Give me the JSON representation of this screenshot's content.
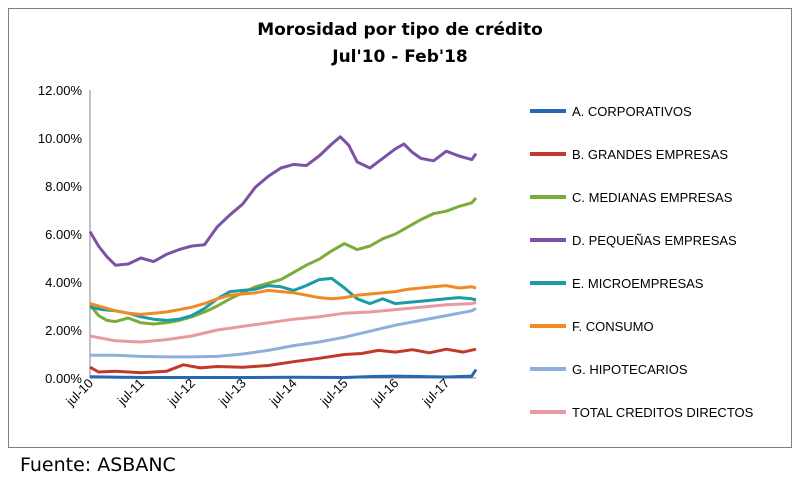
{
  "chart_data": {
    "type": "line",
    "title": "Morosidad por tipo de crédito",
    "subtitle": "Jul'10 - Feb'18",
    "xlabel": "",
    "ylabel": "",
    "ylim": [
      0,
      12
    ],
    "y_ticks": [
      "0.00%",
      "2.00%",
      "4.00%",
      "6.00%",
      "8.00%",
      "10.00%",
      "12.00%"
    ],
    "x_tick_labels": [
      "jul-10",
      "jul-11",
      "jul-12",
      "jul-13",
      "jul-14",
      "jul-15",
      "jul-16",
      "jul-17"
    ],
    "x_range": [
      "2010-07",
      "2018-02"
    ],
    "grid": "none",
    "legend_position": "right",
    "series": [
      {
        "name": "A. CORPORATIVOS",
        "color": "#2469b1",
        "points": [
          [
            "2010-07",
            0.05
          ],
          [
            "2011-07",
            0.02
          ],
          [
            "2012-07",
            0.02
          ],
          [
            "2013-07",
            0.02
          ],
          [
            "2014-07",
            0.03
          ],
          [
            "2015-07",
            0.02
          ],
          [
            "2016-01",
            0.06
          ],
          [
            "2016-07",
            0.08
          ],
          [
            "2017-07",
            0.04
          ],
          [
            "2018-01",
            0.08
          ],
          [
            "2018-02",
            0.35
          ]
        ]
      },
      {
        "name": "B. GRANDES EMPRESAS",
        "color": "#c0392b",
        "points": [
          [
            "2010-07",
            0.45
          ],
          [
            "2010-09",
            0.25
          ],
          [
            "2011-01",
            0.28
          ],
          [
            "2011-07",
            0.22
          ],
          [
            "2012-01",
            0.28
          ],
          [
            "2012-05",
            0.55
          ],
          [
            "2012-09",
            0.42
          ],
          [
            "2013-01",
            0.48
          ],
          [
            "2013-07",
            0.45
          ],
          [
            "2014-01",
            0.52
          ],
          [
            "2014-07",
            0.68
          ],
          [
            "2015-01",
            0.82
          ],
          [
            "2015-07",
            0.98
          ],
          [
            "2015-11",
            1.02
          ],
          [
            "2016-03",
            1.15
          ],
          [
            "2016-07",
            1.08
          ],
          [
            "2016-11",
            1.18
          ],
          [
            "2017-03",
            1.05
          ],
          [
            "2017-07",
            1.2
          ],
          [
            "2017-11",
            1.08
          ],
          [
            "2018-02",
            1.2
          ]
        ]
      },
      {
        "name": "C. MEDIANAS EMPRESAS",
        "color": "#7aac3a",
        "points": [
          [
            "2010-07",
            3.05
          ],
          [
            "2010-09",
            2.6
          ],
          [
            "2010-11",
            2.4
          ],
          [
            "2011-01",
            2.35
          ],
          [
            "2011-04",
            2.5
          ],
          [
            "2011-07",
            2.3
          ],
          [
            "2011-10",
            2.25
          ],
          [
            "2012-01",
            2.3
          ],
          [
            "2012-04",
            2.4
          ],
          [
            "2012-07",
            2.55
          ],
          [
            "2012-10",
            2.75
          ],
          [
            "2013-01",
            3.0
          ],
          [
            "2013-04",
            3.3
          ],
          [
            "2013-07",
            3.55
          ],
          [
            "2013-10",
            3.8
          ],
          [
            "2014-01",
            3.95
          ],
          [
            "2014-04",
            4.1
          ],
          [
            "2014-07",
            4.4
          ],
          [
            "2014-10",
            4.7
          ],
          [
            "2015-01",
            4.95
          ],
          [
            "2015-04",
            5.3
          ],
          [
            "2015-07",
            5.6
          ],
          [
            "2015-10",
            5.35
          ],
          [
            "2016-01",
            5.5
          ],
          [
            "2016-04",
            5.8
          ],
          [
            "2016-07",
            6.0
          ],
          [
            "2016-10",
            6.3
          ],
          [
            "2017-01",
            6.6
          ],
          [
            "2017-04",
            6.85
          ],
          [
            "2017-07",
            6.95
          ],
          [
            "2017-10",
            7.15
          ],
          [
            "2018-01",
            7.3
          ],
          [
            "2018-02",
            7.5
          ]
        ]
      },
      {
        "name": "D. PEQUEÑAS EMPRESAS",
        "color": "#7b52a6",
        "points": [
          [
            "2010-07",
            6.1
          ],
          [
            "2010-09",
            5.5
          ],
          [
            "2010-11",
            5.05
          ],
          [
            "2011-01",
            4.7
          ],
          [
            "2011-04",
            4.75
          ],
          [
            "2011-07",
            5.0
          ],
          [
            "2011-10",
            4.85
          ],
          [
            "2012-01",
            5.15
          ],
          [
            "2012-04",
            5.35
          ],
          [
            "2012-07",
            5.5
          ],
          [
            "2012-10",
            5.55
          ],
          [
            "2013-01",
            6.3
          ],
          [
            "2013-04",
            6.8
          ],
          [
            "2013-07",
            7.25
          ],
          [
            "2013-10",
            7.95
          ],
          [
            "2014-01",
            8.4
          ],
          [
            "2014-04",
            8.75
          ],
          [
            "2014-07",
            8.9
          ],
          [
            "2014-10",
            8.85
          ],
          [
            "2015-01",
            9.25
          ],
          [
            "2015-04",
            9.75
          ],
          [
            "2015-06",
            10.05
          ],
          [
            "2015-08",
            9.7
          ],
          [
            "2015-10",
            9.0
          ],
          [
            "2016-01",
            8.75
          ],
          [
            "2016-04",
            9.15
          ],
          [
            "2016-07",
            9.55
          ],
          [
            "2016-09",
            9.75
          ],
          [
            "2016-11",
            9.4
          ],
          [
            "2017-01",
            9.15
          ],
          [
            "2017-04",
            9.05
          ],
          [
            "2017-07",
            9.45
          ],
          [
            "2017-10",
            9.25
          ],
          [
            "2018-01",
            9.1
          ],
          [
            "2018-02",
            9.35
          ]
        ]
      },
      {
        "name": "E. MICROEMPRESAS",
        "color": "#1c9aa6",
        "points": [
          [
            "2010-07",
            2.95
          ],
          [
            "2010-10",
            2.85
          ],
          [
            "2011-01",
            2.8
          ],
          [
            "2011-04",
            2.7
          ],
          [
            "2011-07",
            2.55
          ],
          [
            "2011-10",
            2.45
          ],
          [
            "2012-01",
            2.4
          ],
          [
            "2012-04",
            2.45
          ],
          [
            "2012-07",
            2.6
          ],
          [
            "2012-10",
            2.9
          ],
          [
            "2013-01",
            3.3
          ],
          [
            "2013-04",
            3.6
          ],
          [
            "2013-07",
            3.65
          ],
          [
            "2013-10",
            3.7
          ],
          [
            "2014-01",
            3.85
          ],
          [
            "2014-04",
            3.8
          ],
          [
            "2014-07",
            3.65
          ],
          [
            "2014-10",
            3.85
          ],
          [
            "2015-01",
            4.1
          ],
          [
            "2015-04",
            4.15
          ],
          [
            "2015-07",
            3.75
          ],
          [
            "2015-10",
            3.3
          ],
          [
            "2016-01",
            3.1
          ],
          [
            "2016-04",
            3.3
          ],
          [
            "2016-07",
            3.1
          ],
          [
            "2016-10",
            3.15
          ],
          [
            "2017-01",
            3.2
          ],
          [
            "2017-04",
            3.25
          ],
          [
            "2017-07",
            3.3
          ],
          [
            "2017-10",
            3.35
          ],
          [
            "2018-01",
            3.3
          ],
          [
            "2018-02",
            3.25
          ]
        ]
      },
      {
        "name": "F. CONSUMO",
        "color": "#f08a24",
        "points": [
          [
            "2010-07",
            3.1
          ],
          [
            "2010-10",
            2.95
          ],
          [
            "2011-01",
            2.8
          ],
          [
            "2011-04",
            2.7
          ],
          [
            "2011-07",
            2.65
          ],
          [
            "2011-10",
            2.7
          ],
          [
            "2012-01",
            2.75
          ],
          [
            "2012-04",
            2.85
          ],
          [
            "2012-07",
            2.95
          ],
          [
            "2012-10",
            3.1
          ],
          [
            "2013-01",
            3.3
          ],
          [
            "2013-04",
            3.45
          ],
          [
            "2013-07",
            3.5
          ],
          [
            "2013-10",
            3.55
          ],
          [
            "2014-01",
            3.65
          ],
          [
            "2014-04",
            3.6
          ],
          [
            "2014-07",
            3.55
          ],
          [
            "2014-10",
            3.45
          ],
          [
            "2015-01",
            3.35
          ],
          [
            "2015-04",
            3.3
          ],
          [
            "2015-07",
            3.35
          ],
          [
            "2015-10",
            3.45
          ],
          [
            "2016-01",
            3.5
          ],
          [
            "2016-04",
            3.55
          ],
          [
            "2016-07",
            3.6
          ],
          [
            "2016-10",
            3.7
          ],
          [
            "2017-01",
            3.75
          ],
          [
            "2017-04",
            3.8
          ],
          [
            "2017-07",
            3.85
          ],
          [
            "2017-10",
            3.75
          ],
          [
            "2018-01",
            3.8
          ],
          [
            "2018-02",
            3.75
          ]
        ]
      },
      {
        "name": "G. HIPOTECARIOS",
        "color": "#8eaedb",
        "points": [
          [
            "2010-07",
            0.95
          ],
          [
            "2011-01",
            0.95
          ],
          [
            "2011-07",
            0.9
          ],
          [
            "2012-01",
            0.88
          ],
          [
            "2012-07",
            0.88
          ],
          [
            "2013-01",
            0.9
          ],
          [
            "2013-07",
            1.0
          ],
          [
            "2014-01",
            1.15
          ],
          [
            "2014-07",
            1.35
          ],
          [
            "2015-01",
            1.5
          ],
          [
            "2015-07",
            1.7
          ],
          [
            "2016-01",
            1.95
          ],
          [
            "2016-07",
            2.2
          ],
          [
            "2017-01",
            2.4
          ],
          [
            "2017-07",
            2.6
          ],
          [
            "2018-01",
            2.8
          ],
          [
            "2018-02",
            2.9
          ]
        ]
      },
      {
        "name": "TOTAL CREDITOS DIRECTOS",
        "color": "#e89aa0",
        "points": [
          [
            "2010-07",
            1.75
          ],
          [
            "2011-01",
            1.55
          ],
          [
            "2011-07",
            1.5
          ],
          [
            "2012-01",
            1.6
          ],
          [
            "2012-07",
            1.75
          ],
          [
            "2013-01",
            2.0
          ],
          [
            "2013-07",
            2.15
          ],
          [
            "2014-01",
            2.3
          ],
          [
            "2014-07",
            2.45
          ],
          [
            "2015-01",
            2.55
          ],
          [
            "2015-07",
            2.7
          ],
          [
            "2016-01",
            2.75
          ],
          [
            "2016-07",
            2.85
          ],
          [
            "2017-01",
            2.95
          ],
          [
            "2017-07",
            3.05
          ],
          [
            "2018-01",
            3.1
          ],
          [
            "2018-02",
            3.15
          ]
        ]
      }
    ]
  },
  "source": "Fuente: ASBANC"
}
